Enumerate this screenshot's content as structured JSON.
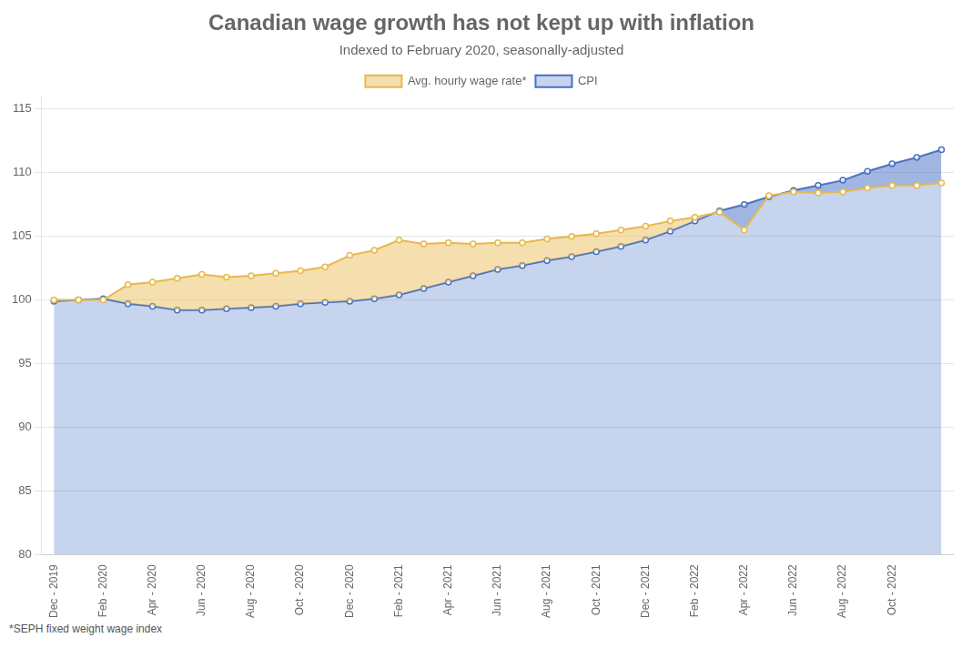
{
  "chart_data": {
    "type": "line",
    "title": "Canadian wage growth has not kept up with inflation",
    "subtitle": "Indexed to February 2020, seasonally-adjusted",
    "footnote": "*SEPH fixed weight wage index",
    "categories": [
      "Dec - 2019",
      null,
      "Feb - 2020",
      null,
      "Apr - 2020",
      null,
      "Jun - 2020",
      null,
      "Aug - 2020",
      null,
      "Oct - 2020",
      null,
      "Dec - 2020",
      null,
      "Feb - 2021",
      null,
      "Apr - 2021",
      null,
      "Jun - 2021",
      null,
      "Aug - 2021",
      null,
      "Oct - 2021",
      null,
      "Dec - 2021",
      null,
      "Feb - 2022",
      null,
      "Apr - 2022",
      null,
      "Jun - 2022",
      null,
      "Aug - 2022",
      null,
      "Oct - 2022",
      null,
      null
    ],
    "series": [
      {
        "name": "CPI",
        "color": "#4472c4",
        "values": [
          99.9,
          100.0,
          100.1,
          99.7,
          99.5,
          99.2,
          99.2,
          99.3,
          99.4,
          99.5,
          99.7,
          99.8,
          99.9,
          100.1,
          100.4,
          100.9,
          101.4,
          101.9,
          102.4,
          102.7,
          103.1,
          103.4,
          103.8,
          104.2,
          104.7,
          105.4,
          106.2,
          107.0,
          107.5,
          108.1,
          108.6,
          109.0,
          109.4,
          110.1,
          110.7,
          111.2,
          111.8
        ]
      },
      {
        "name": "Avg. hourly wage rate*",
        "color": "#e8b84b",
        "values": [
          100.0,
          100.0,
          100.0,
          101.2,
          101.4,
          101.7,
          102.0,
          101.8,
          101.9,
          102.1,
          102.3,
          102.6,
          103.5,
          103.9,
          104.7,
          104.4,
          104.5,
          104.4,
          104.5,
          104.5,
          104.8,
          105.0,
          105.2,
          105.5,
          105.8,
          106.2,
          106.5,
          106.9,
          105.5,
          108.2,
          108.5,
          108.4,
          108.5,
          108.8,
          109.0,
          109.0,
          109.2
        ]
      }
    ],
    "ylim": [
      80,
      116
    ],
    "yticks": [
      80,
      85,
      90,
      95,
      100,
      105,
      110,
      115
    ],
    "grid": true,
    "legend": "top",
    "marker": "circle"
  }
}
